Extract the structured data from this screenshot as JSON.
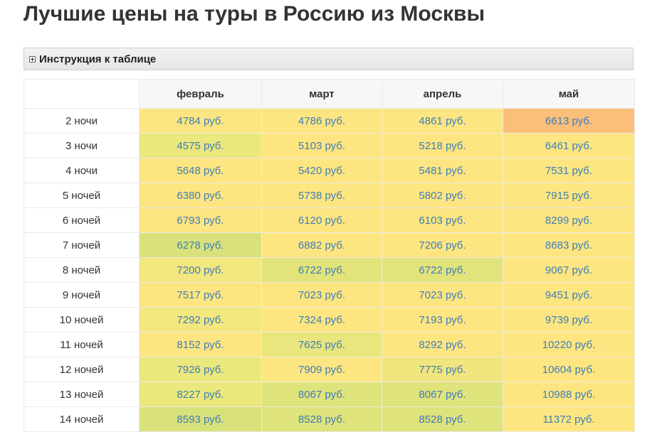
{
  "page_title": "Лучшие цены на туры в Россию из Москвы",
  "instructions_label": "Инструкция к таблице",
  "columns": [
    "февраль",
    "март",
    "апрель",
    "май"
  ],
  "colors": {
    "cheap_green": "#d9e27a",
    "mid_green": "#e5e77c",
    "yellow": "#fde681",
    "peach": "#fbbf79"
  },
  "rows": [
    {
      "label": "2 ночи",
      "cells": [
        {
          "text": "4784 руб.",
          "color": "#fde681"
        },
        {
          "text": "4786 руб.",
          "color": "#fde681"
        },
        {
          "text": "4861 руб.",
          "color": "#fde681"
        },
        {
          "text": "6613 руб.",
          "color": "#fbbf79"
        }
      ]
    },
    {
      "label": "3 ночи",
      "cells": [
        {
          "text": "4575 руб.",
          "color": "#ebe87d"
        },
        {
          "text": "5103 руб.",
          "color": "#fde681"
        },
        {
          "text": "5218 руб.",
          "color": "#fde681"
        },
        {
          "text": "6461 руб.",
          "color": "#fde681"
        }
      ]
    },
    {
      "label": "4 ночи",
      "cells": [
        {
          "text": "5648 руб.",
          "color": "#fde681"
        },
        {
          "text": "5420 руб.",
          "color": "#fde681"
        },
        {
          "text": "5481 руб.",
          "color": "#fde681"
        },
        {
          "text": "7531 руб.",
          "color": "#fde681"
        }
      ]
    },
    {
      "label": "5 ночей",
      "cells": [
        {
          "text": "6380 руб.",
          "color": "#fde681"
        },
        {
          "text": "5738 руб.",
          "color": "#fde681"
        },
        {
          "text": "5802 руб.",
          "color": "#fde681"
        },
        {
          "text": "7915 руб.",
          "color": "#fde681"
        }
      ]
    },
    {
      "label": "6 ночей",
      "cells": [
        {
          "text": "6793 руб.",
          "color": "#fde681"
        },
        {
          "text": "6120 руб.",
          "color": "#fde681"
        },
        {
          "text": "6103 руб.",
          "color": "#fde681"
        },
        {
          "text": "8299 руб.",
          "color": "#fde681"
        }
      ]
    },
    {
      "label": "7 ночей",
      "cells": [
        {
          "text": "6278 руб.",
          "color": "#d9e27a"
        },
        {
          "text": "6882 руб.",
          "color": "#fde681"
        },
        {
          "text": "7206 руб.",
          "color": "#fde681"
        },
        {
          "text": "8683 руб.",
          "color": "#fde681"
        }
      ]
    },
    {
      "label": "8 ночей",
      "cells": [
        {
          "text": "7200 руб.",
          "color": "#f3e77f"
        },
        {
          "text": "6722 руб.",
          "color": "#e2e47b"
        },
        {
          "text": "6722 руб.",
          "color": "#e2e47b"
        },
        {
          "text": "9067 руб.",
          "color": "#fde681"
        }
      ]
    },
    {
      "label": "9 ночей",
      "cells": [
        {
          "text": "7517 руб.",
          "color": "#fde681"
        },
        {
          "text": "7023 руб.",
          "color": "#fde681"
        },
        {
          "text": "7023 руб.",
          "color": "#fde681"
        },
        {
          "text": "9451 руб.",
          "color": "#fde681"
        }
      ]
    },
    {
      "label": "10 ночей",
      "cells": [
        {
          "text": "7292 руб.",
          "color": "#f3e77f"
        },
        {
          "text": "7324 руб.",
          "color": "#fde681"
        },
        {
          "text": "7193 руб.",
          "color": "#fde681"
        },
        {
          "text": "9739 руб.",
          "color": "#fde681"
        }
      ]
    },
    {
      "label": "11 ночей",
      "cells": [
        {
          "text": "8152 руб.",
          "color": "#fde681"
        },
        {
          "text": "7625 руб.",
          "color": "#e8e67c"
        },
        {
          "text": "8292 руб.",
          "color": "#fde681"
        },
        {
          "text": "10220 руб.",
          "color": "#fde681"
        }
      ]
    },
    {
      "label": "12 ночей",
      "cells": [
        {
          "text": "7926 руб.",
          "color": "#ebe87d"
        },
        {
          "text": "7909 руб.",
          "color": "#fde681"
        },
        {
          "text": "7775 руб.",
          "color": "#f1e67e"
        },
        {
          "text": "10604 руб.",
          "color": "#fde681"
        }
      ]
    },
    {
      "label": "13 ночей",
      "cells": [
        {
          "text": "8227 руб.",
          "color": "#ebe87d"
        },
        {
          "text": "8067 руб.",
          "color": "#dfe37b"
        },
        {
          "text": "8067 руб.",
          "color": "#dfe37b"
        },
        {
          "text": "10988 руб.",
          "color": "#fde681"
        }
      ]
    },
    {
      "label": "14 ночей",
      "cells": [
        {
          "text": "8593 руб.",
          "color": "#d9e27a"
        },
        {
          "text": "8528 руб.",
          "color": "#dfe37b"
        },
        {
          "text": "8528 руб.",
          "color": "#dfe37b"
        },
        {
          "text": "11372 руб.",
          "color": "#fde681"
        }
      ]
    }
  ]
}
